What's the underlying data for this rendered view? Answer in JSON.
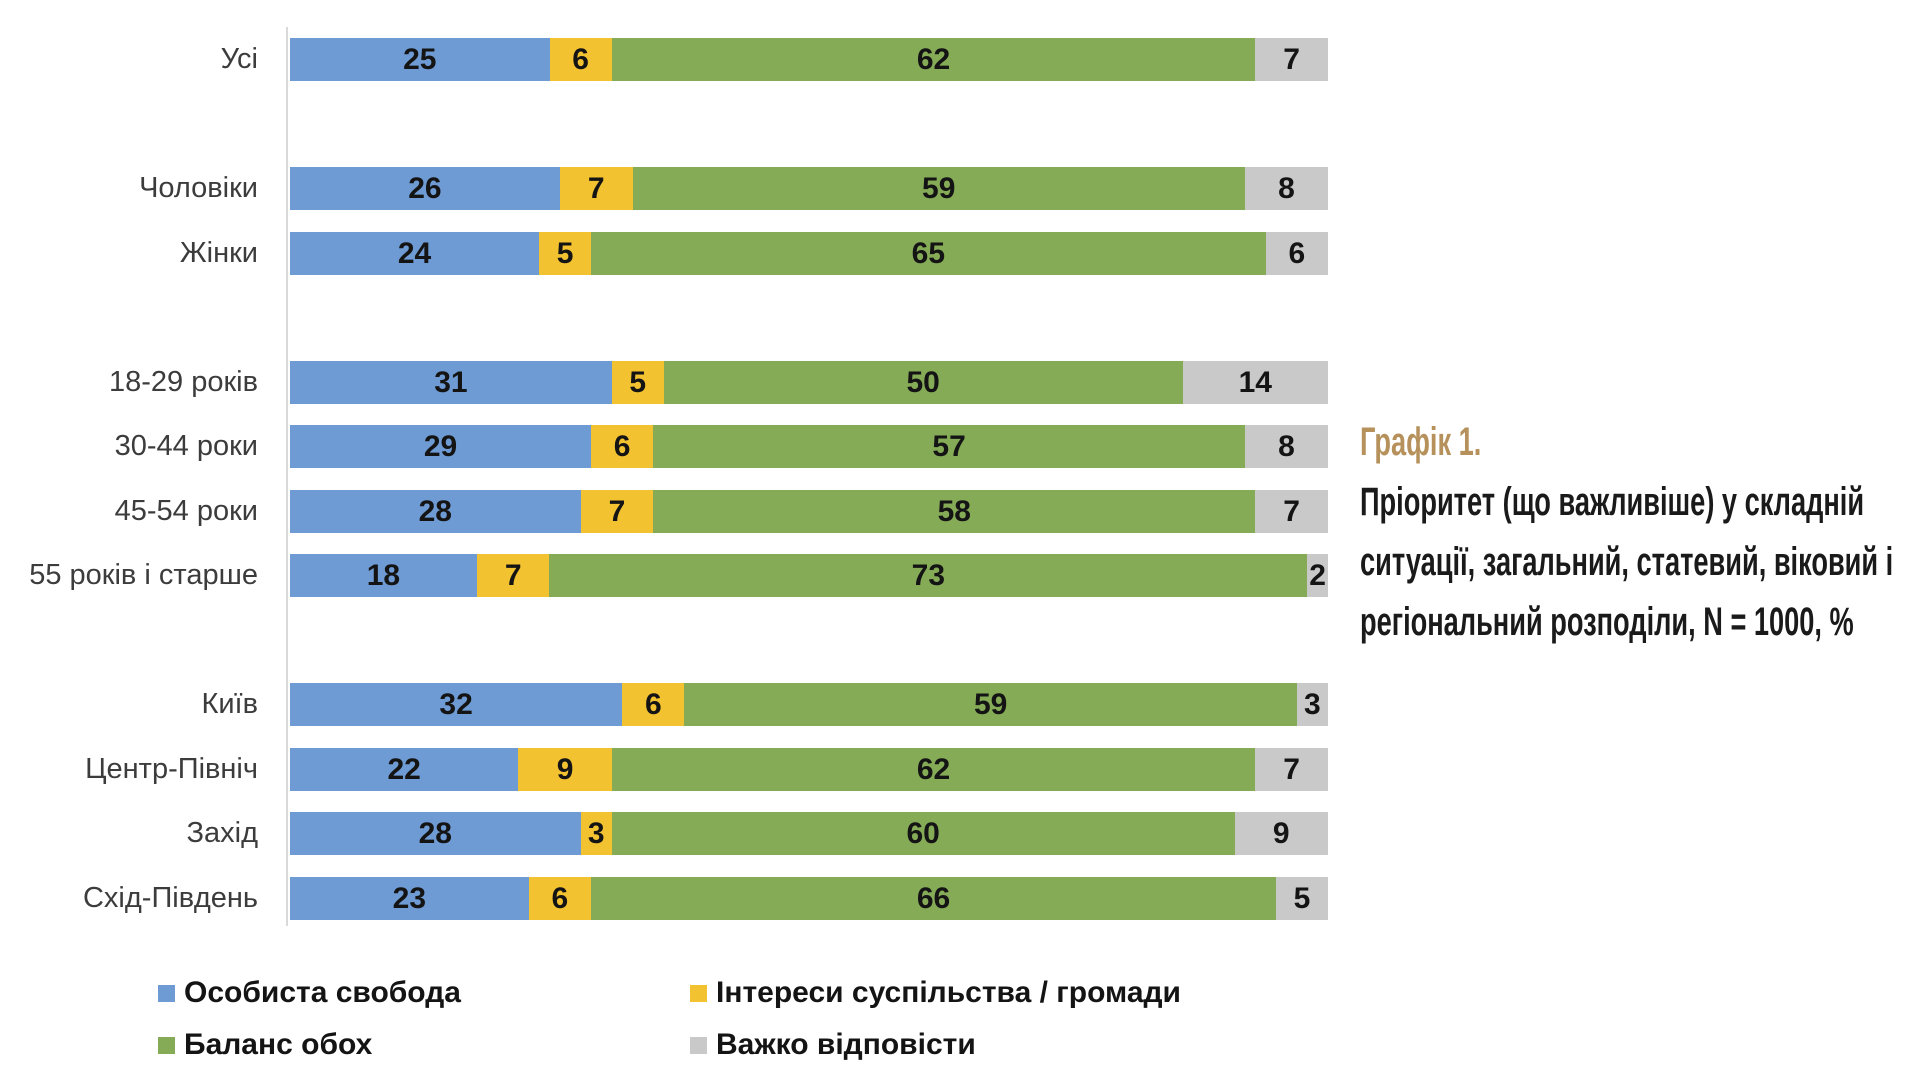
{
  "chart_data": {
    "type": "bar",
    "stacked": true,
    "horizontal": true,
    "unit": "%",
    "xlim": [
      0,
      100
    ],
    "legend_position": "bottom",
    "title": "Графік 1.",
    "subtitle": "Пріоритет (що важливіше) у складній ситуації, загальний, статевий, віковий і регіональний розподіли, N = 1000, %",
    "series": [
      {
        "key": "personal-freedom",
        "name": "Особиста свобода",
        "color": "#6E9BD4"
      },
      {
        "key": "society-interests",
        "name": "Інтереси суспільства / громади",
        "color": "#F2C231"
      },
      {
        "key": "balance-both",
        "name": "Баланс обох",
        "color": "#85AB57"
      },
      {
        "key": "hard-to-say",
        "name": "Важко відповісти",
        "color": "#C9C9C9"
      }
    ],
    "groups": [
      {
        "rows": [
          {
            "label": "Усі",
            "values": [
              25,
              6,
              62,
              7
            ]
          }
        ]
      },
      {
        "rows": [
          {
            "label": "Чоловіки",
            "values": [
              26,
              7,
              59,
              8
            ]
          },
          {
            "label": "Жінки",
            "values": [
              24,
              5,
              65,
              6
            ]
          }
        ]
      },
      {
        "rows": [
          {
            "label": "18-29 років",
            "values": [
              31,
              5,
              50,
              14
            ]
          },
          {
            "label": "30-44 роки",
            "values": [
              29,
              6,
              57,
              8
            ]
          },
          {
            "label": "45-54 роки",
            "values": [
              28,
              7,
              58,
              7
            ]
          },
          {
            "label": "55 років і старше",
            "values": [
              18,
              7,
              73,
              2
            ]
          }
        ]
      },
      {
        "rows": [
          {
            "label": "Київ",
            "values": [
              32,
              6,
              59,
              3
            ]
          },
          {
            "label": "Центр-Північ",
            "values": [
              22,
              9,
              62,
              7
            ]
          },
          {
            "label": "Захід",
            "values": [
              28,
              3,
              60,
              9
            ]
          },
          {
            "label": "Схід-Південь",
            "values": [
              23,
              6,
              66,
              5
            ]
          }
        ]
      }
    ]
  },
  "title_block": {
    "heading": "Графік 1.",
    "heading_color": "#B6915C",
    "lines": [
      "Пріоритет (що важливіше) у складній",
      "ситуації, загальний, статевий, віковий і",
      "регіональний розподіли, N = 1000, %"
    ]
  },
  "colors": {
    "axis_line": "#D9D9D9",
    "value_label": "#141414",
    "category_label": "#3C3C3C"
  }
}
